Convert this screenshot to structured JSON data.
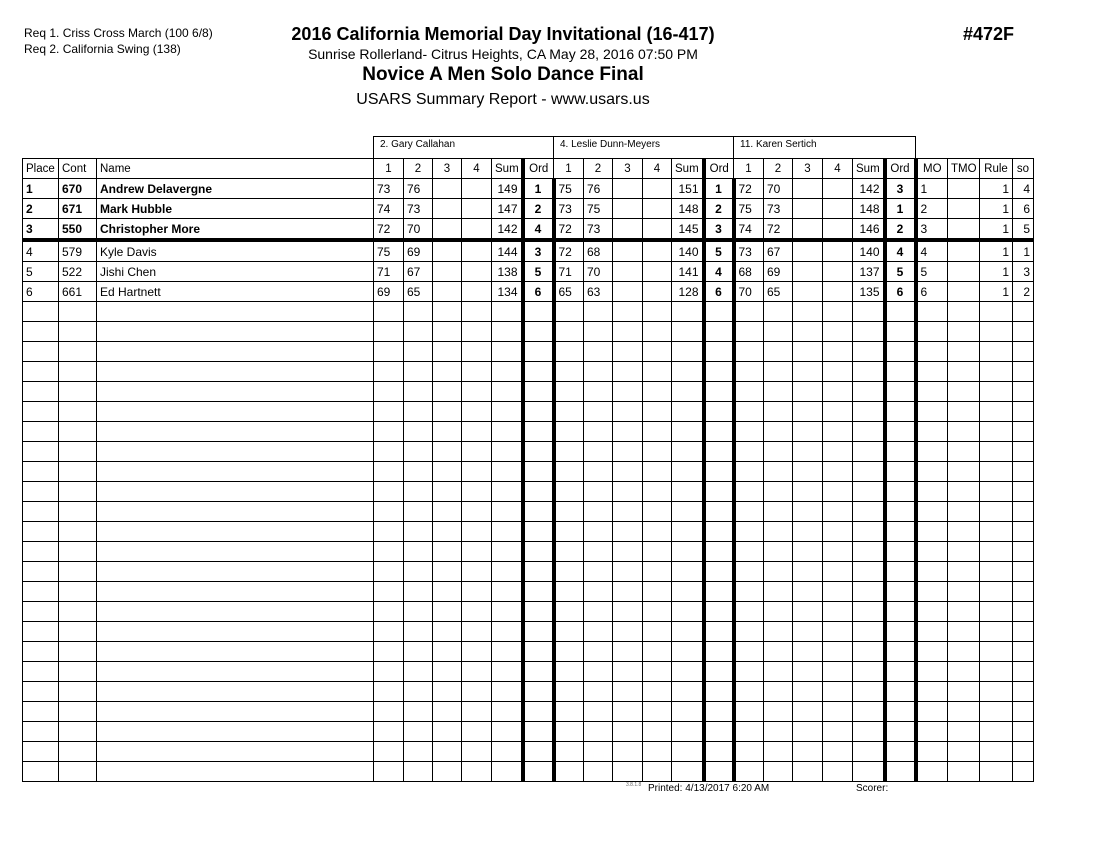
{
  "requirements": [
    "Req  1.  Criss Cross March (100 6/8)",
    "Req  2.  California Swing (138)"
  ],
  "title": "2016 California Memorial Day Invitational (16-417)",
  "venue_line": "Sunrise Rollerland- Citrus Heights, CA  May 28, 2016  07:50 PM",
  "event": "Novice A Men Solo Dance Final",
  "report": "USARS Summary Report - www.usars.us",
  "event_number": "#472F",
  "judges": [
    "2.  Gary Callahan",
    "4.  Leslie Dunn-Meyers",
    "11.  Karen Sertich"
  ],
  "headers": {
    "place": "Place",
    "cont": "Cont",
    "name": "Name",
    "scores": [
      "1",
      "2",
      "3",
      "4"
    ],
    "sum": "Sum",
    "ord": "Ord",
    "mo": "MO",
    "tmo": "TMO",
    "rule": "Rule",
    "so": "so"
  },
  "rows": [
    {
      "place": "1",
      "cont": "670",
      "name": "Andrew Delavergne",
      "bold": true,
      "judges": [
        {
          "s": [
            "73",
            "76",
            "",
            ""
          ],
          "sum": "149",
          "ord": "1"
        },
        {
          "s": [
            "75",
            "76",
            "",
            ""
          ],
          "sum": "151",
          "ord": "1"
        },
        {
          "s": [
            "72",
            "70",
            "",
            ""
          ],
          "sum": "142",
          "ord": "3"
        }
      ],
      "mo": "1",
      "tmo": "",
      "rule": "1",
      "so": "4"
    },
    {
      "place": "2",
      "cont": "671",
      "name": "Mark Hubble",
      "bold": true,
      "judges": [
        {
          "s": [
            "74",
            "73",
            "",
            ""
          ],
          "sum": "147",
          "ord": "2"
        },
        {
          "s": [
            "73",
            "75",
            "",
            ""
          ],
          "sum": "148",
          "ord": "2"
        },
        {
          "s": [
            "75",
            "73",
            "",
            ""
          ],
          "sum": "148",
          "ord": "1"
        }
      ],
      "mo": "2",
      "tmo": "",
      "rule": "1",
      "so": "6"
    },
    {
      "place": "3",
      "cont": "550",
      "name": "Christopher More",
      "bold": true,
      "judges": [
        {
          "s": [
            "72",
            "70",
            "",
            ""
          ],
          "sum": "142",
          "ord": "4"
        },
        {
          "s": [
            "72",
            "73",
            "",
            ""
          ],
          "sum": "145",
          "ord": "3"
        },
        {
          "s": [
            "74",
            "72",
            "",
            ""
          ],
          "sum": "146",
          "ord": "2"
        }
      ],
      "mo": "3",
      "tmo": "",
      "rule": "1",
      "so": "5"
    },
    {
      "place": "4",
      "cont": "579",
      "name": "Kyle Davis",
      "bold": false,
      "judges": [
        {
          "s": [
            "75",
            "69",
            "",
            ""
          ],
          "sum": "144",
          "ord": "3"
        },
        {
          "s": [
            "72",
            "68",
            "",
            ""
          ],
          "sum": "140",
          "ord": "5"
        },
        {
          "s": [
            "73",
            "67",
            "",
            ""
          ],
          "sum": "140",
          "ord": "4"
        }
      ],
      "mo": "4",
      "tmo": "",
      "rule": "1",
      "so": "1"
    },
    {
      "place": "5",
      "cont": "522",
      "name": "Jishi Chen",
      "bold": false,
      "judges": [
        {
          "s": [
            "71",
            "67",
            "",
            ""
          ],
          "sum": "138",
          "ord": "5"
        },
        {
          "s": [
            "71",
            "70",
            "",
            ""
          ],
          "sum": "141",
          "ord": "4"
        },
        {
          "s": [
            "68",
            "69",
            "",
            ""
          ],
          "sum": "137",
          "ord": "5"
        }
      ],
      "mo": "5",
      "tmo": "",
      "rule": "1",
      "so": "3"
    },
    {
      "place": "6",
      "cont": "661",
      "name": "Ed Hartnett",
      "bold": false,
      "judges": [
        {
          "s": [
            "69",
            "65",
            "",
            ""
          ],
          "sum": "134",
          "ord": "6"
        },
        {
          "s": [
            "65",
            "63",
            "",
            ""
          ],
          "sum": "128",
          "ord": "6"
        },
        {
          "s": [
            "70",
            "65",
            "",
            ""
          ],
          "sum": "135",
          "ord": "6"
        }
      ],
      "mo": "6",
      "tmo": "",
      "rule": "1",
      "so": "2"
    }
  ],
  "footer": {
    "version": "3.8.1.8",
    "printed": "Printed:  4/13/2017  6:20 AM",
    "scorer": "Scorer:"
  }
}
